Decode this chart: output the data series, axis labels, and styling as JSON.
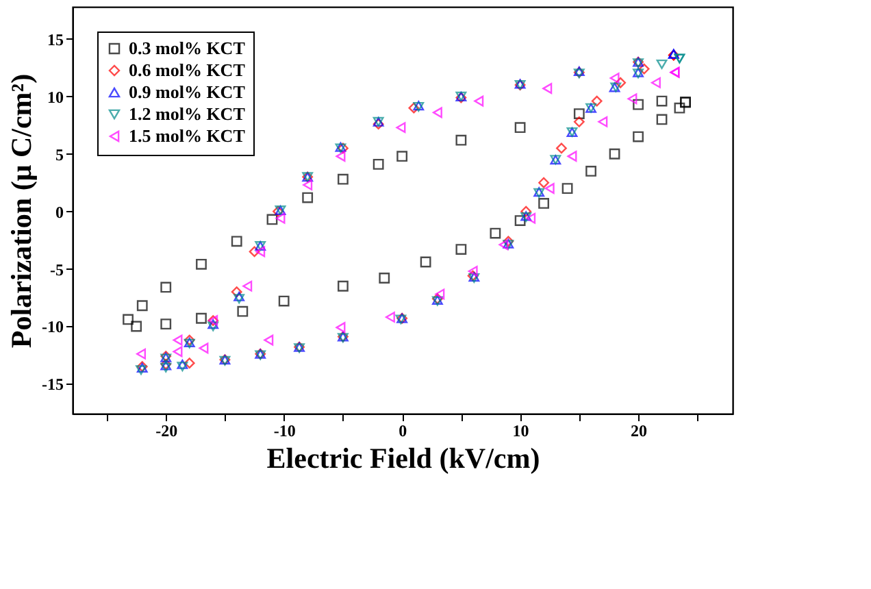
{
  "chart_data": {
    "type": "scatter",
    "xlabel": "Electric Field  (kV/cm)",
    "ylabel": "Polarization  (μ C/cm²)",
    "xlim": [
      -27.9,
      28
    ],
    "ylim": [
      -17.6,
      17.8
    ],
    "xticks": [
      {
        "value": -25,
        "label": null
      },
      -20,
      {
        "value": -15,
        "label": null
      },
      -10,
      {
        "value": -5,
        "label": null
      },
      0,
      {
        "value": 5,
        "label": null
      },
      10,
      {
        "value": 15,
        "label": null
      },
      20,
      {
        "value": 25,
        "label": null
      }
    ],
    "yticks": [
      -15,
      -10,
      -5,
      0,
      5,
      10,
      15
    ],
    "grid": false,
    "legend": "top left",
    "series": [
      {
        "name": "0.3 mol% KCT",
        "color": "#000000",
        "marker": "square",
        "x": [
          24,
          22,
          20,
          15,
          10,
          5,
          0,
          -2,
          -5,
          -8,
          -11,
          -14,
          -17,
          -20,
          -22,
          -23.2,
          -22.5,
          -20,
          -17,
          -13.5,
          -10,
          -5,
          -1.5,
          2,
          5,
          7.9,
          10,
          12,
          14,
          16,
          18,
          20,
          22,
          23.5,
          24
        ],
        "values": [
          9.5,
          9.6,
          9.3,
          8.5,
          7.3,
          6.2,
          4.8,
          4.1,
          2.8,
          1.2,
          -0.7,
          -2.6,
          -4.6,
          -6.6,
          -8.2,
          -9.4,
          -10,
          -9.8,
          -9.3,
          -8.7,
          -7.8,
          -6.5,
          -5.8,
          -4.4,
          -3.3,
          -1.9,
          -0.8,
          0.7,
          2,
          3.5,
          5,
          6.5,
          8,
          9,
          9.5
        ]
      },
      {
        "name": "0.6 mol% KCT",
        "color": "#ff0000",
        "marker": "diamond",
        "x": [
          23,
          20,
          15,
          10,
          5,
          1,
          -2,
          -5,
          -8,
          -10.5,
          -12.5,
          -14,
          -16,
          -18,
          -20,
          -22,
          -20,
          -18,
          -15,
          -12,
          -8.7,
          -5,
          0,
          3,
          6,
          9,
          10.5,
          12,
          13.5,
          15,
          16.5,
          18.5,
          20.5,
          23
        ],
        "values": [
          13.6,
          13,
          12.1,
          11,
          9.9,
          9,
          7.6,
          5.5,
          3,
          0,
          -3.5,
          -7,
          -9.5,
          -11.2,
          -12.6,
          -13.5,
          -13.3,
          -13.2,
          -12.9,
          -12.4,
          -11.8,
          -10.9,
          -9.3,
          -7.6,
          -5.6,
          -2.6,
          0,
          2.5,
          5.5,
          7.8,
          9.6,
          11.2,
          12.4,
          13.6
        ]
      },
      {
        "name": "0.9 mol% KCT",
        "color": "#0000ff",
        "marker": "triangle",
        "x": [
          23,
          20,
          15,
          10,
          5,
          1.4,
          -2,
          -5.2,
          -8,
          -10.3,
          -12,
          -13.8,
          -16,
          -18,
          -20,
          -22,
          -20,
          -18.6,
          -15,
          -12,
          -8.7,
          -5,
          0,
          3,
          6.1,
          9,
          10.5,
          11.6,
          13,
          14.4,
          16,
          18,
          20,
          23
        ],
        "values": [
          13.7,
          13,
          12.2,
          11.1,
          10,
          9.2,
          7.8,
          5.6,
          3,
          0.1,
          -3,
          -7.4,
          -9.8,
          -11.4,
          -12.7,
          -13.6,
          -13.4,
          -13.3,
          -12.9,
          -12.4,
          -11.8,
          -10.9,
          -9.3,
          -7.7,
          -5.7,
          -2.8,
          -0.4,
          1.7,
          4.5,
          6.9,
          9,
          10.8,
          12.1,
          13.7
        ]
      },
      {
        "name": "1.2 mol% KCT",
        "color": "#008b8b",
        "marker": "triangle-down",
        "x": [
          23.5,
          20,
          15,
          10,
          5,
          1.4,
          -2,
          -5.2,
          -8,
          -10.3,
          -12,
          -13.8,
          -16,
          -18,
          -20,
          -22.1,
          -20,
          -18.6,
          -15,
          -12,
          -8.7,
          -5,
          -0.1,
          3,
          6.1,
          9,
          10.5,
          11.6,
          13,
          14.4,
          16,
          18.1,
          20,
          22,
          23.5
        ],
        "values": [
          13.3,
          12.9,
          12,
          11,
          10,
          9.1,
          7.8,
          5.5,
          3,
          0.1,
          -3,
          -7.6,
          -10,
          -11.5,
          -12.8,
          -13.8,
          -13.6,
          -13.5,
          -13,
          -12.5,
          -11.9,
          -11,
          -9.4,
          -7.8,
          -5.8,
          -2.9,
          -0.5,
          1.6,
          4.5,
          6.9,
          9,
          10.8,
          12,
          12.8,
          13.3
        ]
      },
      {
        "name": "1.5 mol% KCT",
        "color": "#ff00ff",
        "marker": "triangle-left",
        "x": [
          23.1,
          18,
          12.3,
          6.5,
          3,
          -0.1,
          -5.2,
          -8,
          -10.3,
          -12,
          -13.1,
          -16,
          -19,
          -22.1,
          -19,
          -16.8,
          -11.3,
          -5.2,
          -1,
          3.2,
          6,
          8.6,
          10.9,
          12.5,
          14.4,
          17,
          19.5,
          21.5,
          23.1
        ],
        "values": [
          12.1,
          11.6,
          10.7,
          9.6,
          8.6,
          7.3,
          4.8,
          2.3,
          -0.6,
          -3.5,
          -6.5,
          -9.5,
          -11.2,
          -12.4,
          -12.2,
          -11.9,
          -11.2,
          -10.1,
          -9.2,
          -7.2,
          -5.2,
          -2.9,
          -0.6,
          2,
          4.8,
          7.8,
          9.8,
          11.2,
          12.1
        ]
      }
    ]
  }
}
